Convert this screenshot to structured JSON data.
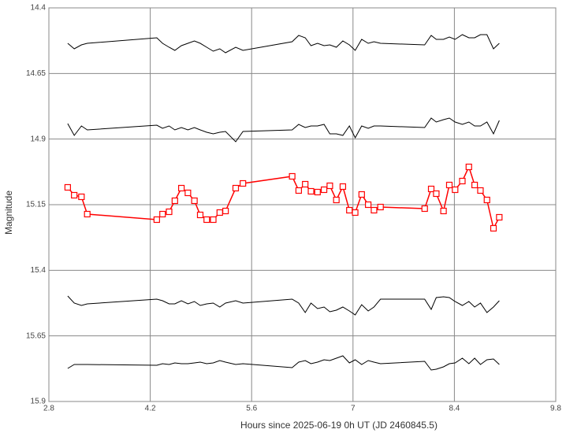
{
  "chart_data": {
    "type": "line",
    "x_label": "Hours since 2025-06-19 0h UT (JD 2460845.5)",
    "y_label": "Magnitude",
    "x": [
      3.06,
      3.15,
      3.25,
      3.33,
      4.29,
      4.37,
      4.46,
      4.54,
      4.63,
      4.72,
      4.81,
      4.89,
      4.98,
      5.07,
      5.16,
      5.24,
      5.38,
      5.48,
      6.16,
      6.25,
      6.34,
      6.42,
      6.51,
      6.6,
      6.68,
      6.77,
      6.86,
      6.95,
      7.03,
      7.12,
      7.21,
      7.29,
      7.38,
      7.99,
      8.08,
      8.15,
      8.25,
      8.33,
      8.41,
      8.51,
      8.6,
      8.68,
      8.76,
      8.85,
      8.94,
      9.02
    ],
    "series": [
      {
        "color": "#000000",
        "marker": false,
        "values": [
          14.535,
          14.556,
          14.541,
          14.535,
          14.514,
          14.535,
          14.55,
          14.562,
          14.544,
          14.535,
          14.526,
          14.535,
          14.55,
          14.565,
          14.556,
          14.571,
          14.55,
          14.562,
          14.529,
          14.505,
          14.514,
          14.544,
          14.535,
          14.544,
          14.541,
          14.55,
          14.526,
          14.541,
          14.562,
          14.52,
          14.535,
          14.529,
          14.535,
          14.541,
          14.505,
          14.52,
          14.52,
          14.511,
          14.52,
          14.502,
          14.514,
          14.514,
          14.502,
          14.502,
          14.556,
          14.535
        ]
      },
      {
        "color": "#000000",
        "marker": false,
        "values": [
          14.841,
          14.886,
          14.85,
          14.865,
          14.847,
          14.859,
          14.85,
          14.865,
          14.856,
          14.865,
          14.856,
          14.865,
          14.874,
          14.88,
          14.874,
          14.871,
          14.91,
          14.871,
          14.865,
          14.844,
          14.856,
          14.85,
          14.85,
          14.844,
          14.88,
          14.88,
          14.886,
          14.85,
          14.895,
          14.85,
          14.859,
          14.85,
          14.85,
          14.856,
          14.82,
          14.835,
          14.826,
          14.82,
          14.835,
          14.844,
          14.835,
          14.85,
          14.85,
          14.835,
          14.88,
          14.829
        ]
      },
      {
        "color": "#ff0000",
        "marker": true,
        "values": [
          15.084,
          15.114,
          15.12,
          15.186,
          15.207,
          15.186,
          15.177,
          15.135,
          15.087,
          15.105,
          15.135,
          15.189,
          15.207,
          15.207,
          15.18,
          15.174,
          15.087,
          15.069,
          15.042,
          15.096,
          15.072,
          15.099,
          15.102,
          15.093,
          15.078,
          15.132,
          15.081,
          15.171,
          15.18,
          15.111,
          15.15,
          15.171,
          15.159,
          15.165,
          15.09,
          15.108,
          15.174,
          15.075,
          15.093,
          15.06,
          15.006,
          15.075,
          15.096,
          15.132,
          15.24,
          15.198
        ]
      },
      {
        "color": "#000000",
        "marker": false,
        "values": [
          15.498,
          15.525,
          15.534,
          15.528,
          15.51,
          15.516,
          15.528,
          15.528,
          15.516,
          15.528,
          15.519,
          15.534,
          15.528,
          15.525,
          15.54,
          15.525,
          15.516,
          15.525,
          15.51,
          15.525,
          15.561,
          15.525,
          15.546,
          15.54,
          15.558,
          15.552,
          15.54,
          15.555,
          15.57,
          15.531,
          15.555,
          15.54,
          15.51,
          15.51,
          15.549,
          15.504,
          15.501,
          15.504,
          15.519,
          15.534,
          15.519,
          15.54,
          15.525,
          15.561,
          15.54,
          15.516
        ]
      },
      {
        "color": "#000000",
        "marker": false,
        "values": [
          15.774,
          15.759,
          15.759,
          15.759,
          15.762,
          15.756,
          15.759,
          15.753,
          15.756,
          15.756,
          15.753,
          15.75,
          15.756,
          15.753,
          15.744,
          15.75,
          15.759,
          15.756,
          15.771,
          15.75,
          15.744,
          15.756,
          15.75,
          15.741,
          15.744,
          15.735,
          15.726,
          15.753,
          15.741,
          15.759,
          15.744,
          15.75,
          15.756,
          15.747,
          15.78,
          15.777,
          15.768,
          15.756,
          15.753,
          15.735,
          15.756,
          15.735,
          15.759,
          15.741,
          15.738,
          15.759
        ]
      }
    ],
    "xlim": [
      2.8,
      9.8
    ],
    "xticks": [
      2.8,
      4.2,
      5.6,
      7,
      8.4,
      9.8
    ],
    "ylim": [
      14.4,
      15.9
    ],
    "yticks": [
      14.4,
      14.65,
      14.9,
      15.15,
      15.4,
      15.65,
      15.9
    ],
    "y_inverted": true,
    "grid": true
  }
}
